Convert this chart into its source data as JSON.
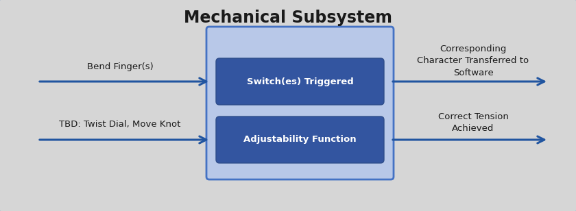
{
  "title": "Mechanical Subsystem",
  "title_fontsize": 17,
  "title_fontweight": "bold",
  "bg_color": "#d6d6d6",
  "outer_border_color": "#4472c4",
  "mid_box_fill": "#b8c8e8",
  "mid_box_border": "#4472c4",
  "inner_box_fill": "#3355a0",
  "inner_box_border": "#2e4d8a",
  "inner_box_text_color": "#ffffff",
  "inner_box1_label": "Switch(es) Triggered",
  "inner_box2_label": "Adjustability Function",
  "arrow_color": "#2155a0",
  "label_color": "#1a1a1a",
  "left_label1": "Bend Finger(s)",
  "left_label2": "TBD: Twist Dial, Move Knot",
  "right_label1": "Corresponding\nCharacter Transferred to\nSoftware",
  "right_label2": "Correct Tension\nAchieved",
  "text_fontsize": 9.5
}
